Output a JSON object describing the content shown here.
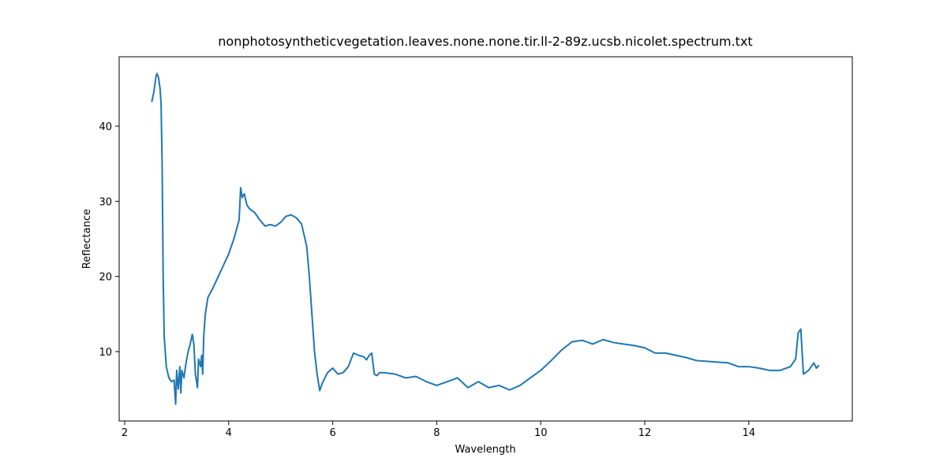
{
  "chart_data": {
    "type": "line",
    "title": "nonphotosyntheticvegetation.leaves.none.none.tir.ll-2-89z.ucsb.nicolet.spectrum.txt",
    "x_label": "Wavelength",
    "y_label": "Reflectance",
    "xlim": [
      1.894,
      15.99
    ],
    "ylim": [
      0.77,
      49.23
    ],
    "xticks": [
      2,
      4,
      6,
      8,
      10,
      12,
      14
    ],
    "yticks": [
      10,
      20,
      30,
      40
    ],
    "color": "#1f77b4",
    "x": [
      2.52,
      2.56,
      2.6,
      2.62,
      2.65,
      2.68,
      2.7,
      2.72,
      2.74,
      2.76,
      2.8,
      2.85,
      2.9,
      2.95,
      2.98,
      3.0,
      3.03,
      3.06,
      3.08,
      3.1,
      3.14,
      3.18,
      3.22,
      3.26,
      3.3,
      3.33,
      3.36,
      3.4,
      3.42,
      3.46,
      3.48,
      3.5,
      3.52,
      3.55,
      3.6,
      3.7,
      3.8,
      3.9,
      4.0,
      4.1,
      4.2,
      4.23,
      4.26,
      4.3,
      4.35,
      4.4,
      4.5,
      4.6,
      4.7,
      4.8,
      4.9,
      5.0,
      5.1,
      5.2,
      5.3,
      5.4,
      5.5,
      5.55,
      5.6,
      5.65,
      5.7,
      5.75,
      5.8,
      5.9,
      6.0,
      6.1,
      6.2,
      6.3,
      6.4,
      6.5,
      6.6,
      6.65,
      6.7,
      6.75,
      6.8,
      6.85,
      6.9,
      7.0,
      7.2,
      7.4,
      7.6,
      7.8,
      8.0,
      8.2,
      8.4,
      8.6,
      8.8,
      9.0,
      9.2,
      9.4,
      9.6,
      9.8,
      10.0,
      10.2,
      10.4,
      10.6,
      10.8,
      11.0,
      11.2,
      11.4,
      11.6,
      11.8,
      12.0,
      12.2,
      12.4,
      12.6,
      12.8,
      13.0,
      13.2,
      13.4,
      13.6,
      13.8,
      14.0,
      14.2,
      14.4,
      14.6,
      14.8,
      14.9,
      14.95,
      15.0,
      15.05,
      15.15,
      15.25,
      15.3,
      15.35
    ],
    "values": [
      43.2,
      44.5,
      46.5,
      47.0,
      46.5,
      45.0,
      43.0,
      35,
      20,
      12,
      8,
      6.5,
      6.0,
      6.2,
      3.0,
      7.5,
      5.0,
      8.0,
      4.5,
      7.5,
      6.5,
      8.5,
      10.0,
      11.0,
      12.3,
      11.0,
      7.0,
      5.2,
      9.0,
      8.0,
      9.5,
      7.0,
      12,
      15,
      17.2,
      18.5,
      20.0,
      21.5,
      23.0,
      25.0,
      27.5,
      31.8,
      30.5,
      31.0,
      29.5,
      29.0,
      28.5,
      27.5,
      26.7,
      26.9,
      26.7,
      27.2,
      28.0,
      28.2,
      27.8,
      27.0,
      24,
      20,
      15,
      10,
      7,
      4.8,
      5.8,
      7.2,
      7.8,
      7.0,
      7.2,
      8.0,
      9.8,
      9.5,
      9.3,
      8.9,
      9.5,
      9.8,
      7.0,
      6.8,
      7.2,
      7.2,
      7.0,
      6.5,
      6.7,
      6.0,
      5.5,
      6.0,
      6.5,
      5.2,
      6.0,
      5.2,
      5.5,
      4.9,
      5.5,
      6.5,
      7.5,
      8.8,
      10.2,
      11.3,
      11.5,
      11.0,
      11.6,
      11.2,
      11.0,
      10.8,
      10.5,
      9.8,
      9.8,
      9.5,
      9.2,
      8.8,
      8.7,
      8.6,
      8.5,
      8.0,
      8.0,
      7.8,
      7.5,
      7.5,
      8.0,
      9.0,
      12.5,
      13.0,
      7.0,
      7.5,
      8.5,
      7.8,
      8.2
    ]
  }
}
